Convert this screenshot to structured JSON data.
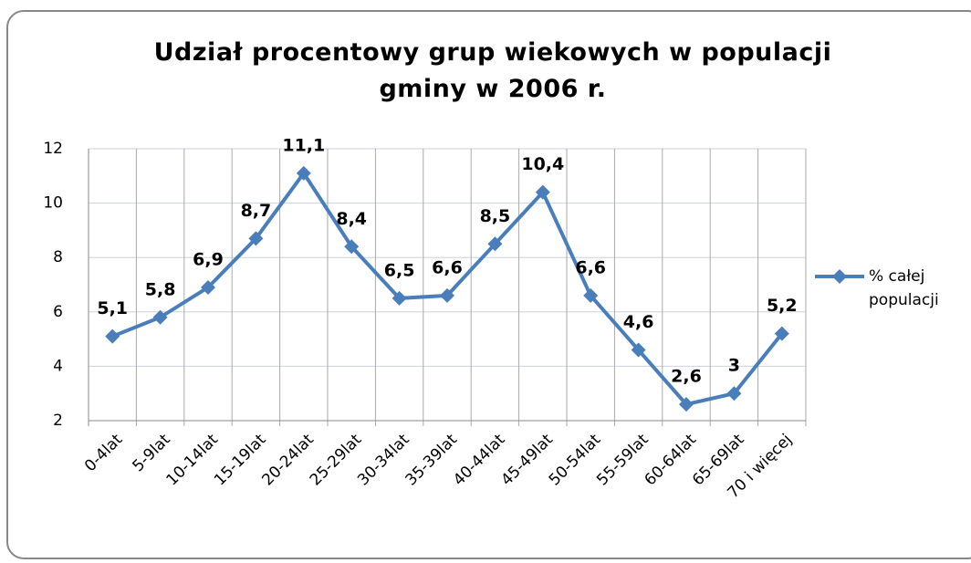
{
  "chart_data": {
    "type": "line",
    "title": "Udział procentowy grup wiekowych w populacji gminy w 2006 r.",
    "categories": [
      "0-4lat",
      "5-9lat",
      "10-14lat",
      "15-19lat",
      "20-24lat",
      "25-29lat",
      "30-34lat",
      "35-39lat",
      "40-44lat",
      "45-49lat",
      "50-54lat",
      "55-59lat",
      "60-64lat",
      "65-69lat",
      "70 i więcej"
    ],
    "series": [
      {
        "name": "% całej populacji",
        "color": "#4a7ebb",
        "values": [
          5.1,
          5.8,
          6.9,
          8.7,
          11.1,
          8.4,
          6.5,
          6.6,
          8.5,
          10.4,
          6.6,
          4.6,
          2.6,
          3,
          5.2
        ],
        "value_labels": [
          "5,1",
          "5,8",
          "6,9",
          "8,7",
          "11,1",
          "8,4",
          "6,5",
          "6,6",
          "8,5",
          "10,4",
          "6,6",
          "4,6",
          "2,6",
          "3",
          "5,2"
        ]
      }
    ],
    "ylim": [
      2,
      12
    ],
    "yticks": [
      2,
      4,
      6,
      8,
      10,
      12
    ],
    "grid": true,
    "legend": "right"
  }
}
